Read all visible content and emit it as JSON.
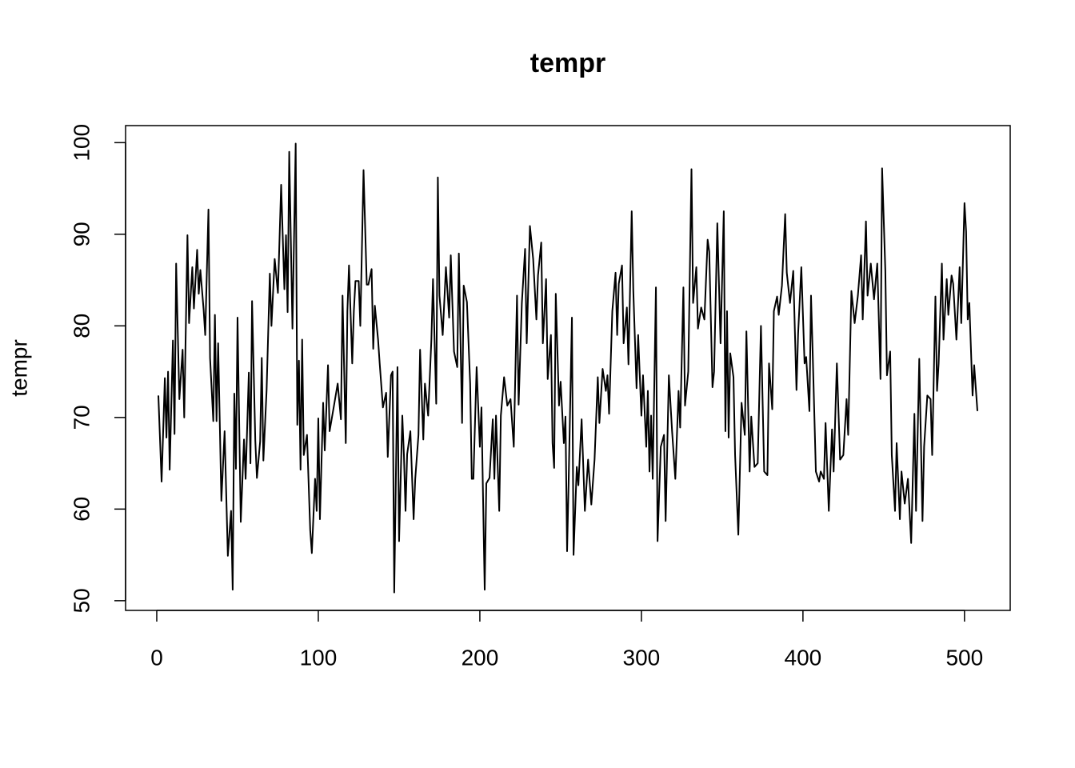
{
  "chart_data": {
    "type": "line",
    "title": "tempr",
    "y_label": "tempr",
    "color": "#000000",
    "x": [
      1,
      3,
      5,
      6,
      7,
      8,
      10,
      11,
      12,
      14,
      16,
      17,
      19,
      20,
      22,
      23,
      25,
      26,
      27,
      29,
      30,
      32,
      33,
      35,
      36,
      37,
      38,
      40,
      42,
      44,
      46,
      47,
      48,
      49,
      50,
      52,
      54,
      55,
      57,
      58,
      59,
      61,
      62,
      64,
      65,
      66,
      68,
      70,
      71,
      73,
      75,
      77,
      79,
      80,
      81,
      82,
      84,
      86,
      87,
      88,
      89,
      90,
      91,
      93,
      95,
      96,
      98,
      99,
      100,
      101,
      103,
      104,
      106,
      107,
      110,
      112,
      114,
      115,
      117,
      118,
      119,
      121,
      122,
      123,
      125,
      126,
      128,
      130,
      131,
      133,
      134,
      135,
      137,
      138,
      140,
      142,
      143,
      145,
      146,
      147,
      149,
      150,
      152,
      153,
      154,
      155,
      157,
      159,
      160,
      162,
      163,
      165,
      166,
      168,
      170,
      171,
      173,
      174,
      175,
      177,
      179,
      181,
      182,
      184,
      186,
      187,
      189,
      190,
      192,
      194,
      195,
      196,
      198,
      200,
      201,
      203,
      204,
      206,
      208,
      209,
      210,
      212,
      213,
      215,
      217,
      219,
      221,
      223,
      224,
      226,
      228,
      229,
      231,
      233,
      235,
      236,
      238,
      239,
      241,
      242,
      244,
      245,
      246,
      247,
      249,
      250,
      252,
      253,
      254,
      255,
      257,
      258,
      260,
      261,
      263,
      265,
      267,
      269,
      271,
      273,
      274,
      276,
      278,
      279,
      280,
      282,
      284,
      285,
      286,
      288,
      289,
      291,
      292,
      294,
      295,
      297,
      298,
      300,
      301,
      303,
      304,
      305,
      306,
      307,
      309,
      310,
      312,
      314,
      315,
      317,
      319,
      321,
      323,
      324,
      326,
      327,
      329,
      331,
      332,
      334,
      335,
      337,
      339,
      341,
      342,
      344,
      345,
      347,
      349,
      351,
      352,
      353,
      354,
      355,
      357,
      358,
      360,
      362,
      364,
      365,
      367,
      368,
      370,
      372,
      374,
      376,
      378,
      379,
      381,
      382,
      384,
      385,
      387,
      389,
      390,
      392,
      394,
      396,
      397,
      399,
      401,
      402,
      404,
      405,
      406,
      408,
      410,
      411,
      413,
      414,
      416,
      418,
      419,
      421,
      423,
      425,
      427,
      428,
      430,
      432,
      434,
      436,
      437,
      439,
      440,
      442,
      444,
      446,
      448,
      449,
      451,
      452,
      454,
      455,
      457,
      458,
      460,
      461,
      463,
      465,
      467,
      469,
      470,
      472,
      474,
      475,
      477,
      479,
      480,
      482,
      483,
      484,
      486,
      487,
      489,
      490,
      492,
      493,
      495,
      497,
      498,
      500,
      501,
      502,
      503,
      505,
      506,
      508
    ],
    "values": [
      72.4,
      63,
      74.3,
      67.8,
      75,
      64.3,
      78.4,
      68.2,
      86.8,
      72,
      77.4,
      70,
      89.9,
      80.3,
      86.4,
      81.9,
      88.3,
      83.5,
      86.1,
      81.8,
      79,
      92.7,
      76.5,
      69.6,
      81.2,
      69.6,
      78.1,
      60.9,
      68.5,
      54.9,
      59.8,
      51.2,
      72.6,
      64.4,
      80.9,
      58.6,
      67.6,
      63.3,
      74.9,
      65,
      82.7,
      67.5,
      63.4,
      67.4,
      76.5,
      65.3,
      73,
      85.7,
      80,
      87.3,
      83.6,
      95.4,
      84,
      89.9,
      81.5,
      99,
      79.7,
      99.9,
      69.2,
      76.2,
      64.3,
      78.5,
      65.9,
      68.1,
      57.7,
      55.2,
      63.3,
      59.8,
      69.9,
      58.9,
      71.6,
      66.4,
      75.7,
      68.5,
      71.6,
      73.7,
      69.8,
      83.3,
      67.2,
      81.6,
      86.6,
      75.9,
      81.6,
      84.9,
      84.9,
      80,
      97,
      84.5,
      84.5,
      86.2,
      77.5,
      82.2,
      78.5,
      75.9,
      71.1,
      72.7,
      65.7,
      74.6,
      75,
      50.9,
      75.5,
      56.5,
      70.2,
      65.9,
      59.8,
      66,
      68.5,
      58.9,
      63.3,
      68.1,
      77.4,
      67.6,
      73.7,
      70.2,
      78.5,
      85.1,
      71.5,
      96.2,
      83.3,
      79,
      86.4,
      80.9,
      87.7,
      77.2,
      75.5,
      87.9,
      69.4,
      84.4,
      82.6,
      73.7,
      63.3,
      63.3,
      75.5,
      66.8,
      71.1,
      51.2,
      62.8,
      63.4,
      69.8,
      63.3,
      70.2,
      59.8,
      70.2,
      74.4,
      71.3,
      72,
      66.8,
      83.3,
      71.4,
      82.5,
      88.4,
      78.1,
      90.9,
      87.3,
      80.7,
      85.5,
      89.1,
      78.1,
      85.1,
      74.2,
      79,
      67.2,
      64.5,
      83.5,
      71.3,
      73.9,
      67.2,
      70.1,
      55.4,
      63.3,
      80.9,
      55,
      64.6,
      62.6,
      69.8,
      59.8,
      65.4,
      60.5,
      65.4,
      74.4,
      69.4,
      75.3,
      72.9,
      74.6,
      70.4,
      81.6,
      85.8,
      79,
      84.6,
      86.6,
      78.1,
      82,
      75.8,
      92.5,
      83.8,
      73.2,
      79,
      70.2,
      74.6,
      66.8,
      72.9,
      64.1,
      70.2,
      63.3,
      84.2,
      56.5,
      66.8,
      68.1,
      58.7,
      74.6,
      68.5,
      63.3,
      72.9,
      68.9,
      84.2,
      71.3,
      75,
      97.1,
      82.5,
      86.4,
      79.7,
      82,
      80.7,
      89.4,
      88.1,
      73.3,
      75,
      91.2,
      78.1,
      92.5,
      68.5,
      81.6,
      67.8,
      77,
      74.4,
      65.9,
      57.2,
      71.6,
      68.1,
      79.4,
      64.1,
      70.1,
      64.6,
      65,
      80,
      64.1,
      63.7,
      75.9,
      70.9,
      81.6,
      83.2,
      81.2,
      84.4,
      92.2,
      85.8,
      82.5,
      86,
      73,
      79.1,
      86.4,
      75.9,
      76.6,
      70.7,
      83.3,
      77.2,
      64.1,
      63,
      64.1,
      63.3,
      69.4,
      59.8,
      68.7,
      64.1,
      75.9,
      65.4,
      65.9,
      72,
      68.1,
      83.8,
      80.3,
      83.3,
      87.7,
      80.7,
      91.4,
      83.3,
      86.8,
      82.9,
      86.8,
      74.2,
      97.2,
      86,
      74.6,
      77.2,
      65.9,
      59.8,
      67.2,
      58.9,
      64.1,
      60.6,
      63.3,
      56.3,
      70.4,
      59.8,
      76.4,
      58.7,
      66.8,
      72.4,
      72,
      65.9,
      83.2,
      72.9,
      75.9,
      86.8,
      78.5,
      85.1,
      81.2,
      85.5,
      84.6,
      78.5,
      86.4,
      80.3,
      93.4,
      90.3,
      80.7,
      82.5,
      72.4,
      75.7,
      70.7
    ],
    "xlim": [
      -19.3,
      528.3
    ],
    "xticks": [
      0,
      100,
      200,
      300,
      400,
      500
    ],
    "ylim": [
      48.94,
      101.86
    ],
    "yticks": [
      50,
      60,
      70,
      80,
      90,
      100
    ]
  }
}
